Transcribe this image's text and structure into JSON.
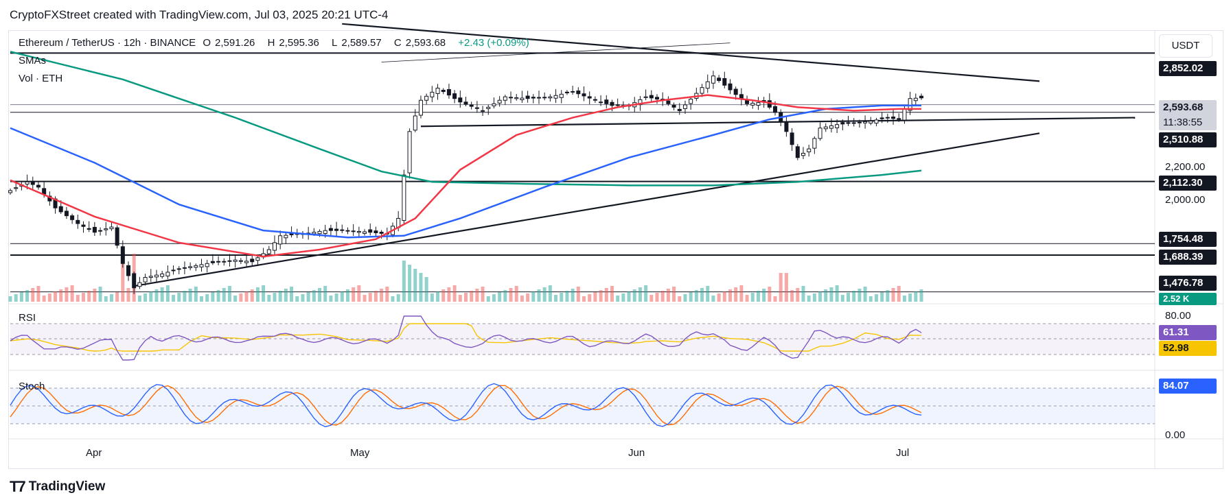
{
  "caption": "CryptoFXStreet created with TradingView.com, Jul 03, 2025 20:21 UTC-4",
  "legend": {
    "symbol": "Ethereum / TetherUS · 12h · BINANCE",
    "open_label": "O",
    "open": "2,591.26",
    "high_label": "H",
    "high": "2,595.36",
    "low_label": "L",
    "low": "2,589.57",
    "close_label": "C",
    "close": "2,593.68",
    "change": "+2.43 (+0.09%)",
    "smas": "SMAs",
    "vol": "Vol · ETH"
  },
  "currency": "USDT",
  "brand": "TradingView",
  "colors": {
    "up": "#26a69a",
    "down": "#ef5350",
    "sma_red": "#f23645",
    "sma_blue": "#2962ff",
    "sma_green": "#089981",
    "rsi": "#7e57c2",
    "rsi_ma": "#f7c500",
    "stoch_k": "#2962ff",
    "stoch_d": "#ff6d00"
  },
  "chart_data": {
    "type": "candlestick",
    "x_labels": [
      "Apr",
      "May",
      "Jun",
      "Jul"
    ],
    "price_axis_ticks": [
      "2,200.00",
      "2,000.00"
    ],
    "levels": [
      {
        "value": 2852.02,
        "label": "2,852.02"
      },
      {
        "value": 2510.88,
        "label": "2,510.88"
      },
      {
        "value": 2112.3,
        "label": "2,112.30"
      },
      {
        "value": 1754.48,
        "label": "1,754.48"
      },
      {
        "value": 1688.39,
        "label": "1,688.39"
      },
      {
        "value": 1476.78,
        "label": "1,476.78"
      }
    ],
    "last_price": {
      "label": "2,593.68",
      "countdown": "11:38:55"
    },
    "volume_label": "2.52 K",
    "close_path": [
      [
        0,
        2060
      ],
      [
        3,
        2110
      ],
      [
        5,
        2080
      ],
      [
        8,
        1960
      ],
      [
        12,
        1870
      ],
      [
        15,
        1820
      ],
      [
        18,
        1850
      ],
      [
        20,
        1640
      ],
      [
        22,
        1500
      ],
      [
        24,
        1560
      ],
      [
        27,
        1580
      ],
      [
        30,
        1610
      ],
      [
        35,
        1640
      ],
      [
        40,
        1660
      ],
      [
        43,
        1650
      ],
      [
        46,
        1720
      ],
      [
        48,
        1800
      ],
      [
        52,
        1810
      ],
      [
        56,
        1830
      ],
      [
        60,
        1830
      ],
      [
        64,
        1820
      ],
      [
        67,
        1810
      ],
      [
        69,
        1900
      ],
      [
        71,
        2400
      ],
      [
        73,
        2580
      ],
      [
        76,
        2650
      ],
      [
        80,
        2570
      ],
      [
        84,
        2520
      ],
      [
        88,
        2600
      ],
      [
        92,
        2590
      ],
      [
        96,
        2600
      ],
      [
        100,
        2630
      ],
      [
        104,
        2580
      ],
      [
        107,
        2550
      ],
      [
        110,
        2550
      ],
      [
        113,
        2600
      ],
      [
        116,
        2580
      ],
      [
        119,
        2520
      ],
      [
        122,
        2620
      ],
      [
        125,
        2720
      ],
      [
        128,
        2640
      ],
      [
        131,
        2560
      ],
      [
        134,
        2570
      ],
      [
        136,
        2510
      ],
      [
        138,
        2400
      ],
      [
        140,
        2250
      ],
      [
        142,
        2300
      ],
      [
        144,
        2420
      ],
      [
        147,
        2440
      ],
      [
        150,
        2450
      ],
      [
        153,
        2460
      ],
      [
        156,
        2480
      ],
      [
        158,
        2470
      ],
      [
        160,
        2590
      ],
      [
        162,
        2593.68
      ]
    ],
    "sma_red": [
      [
        0,
        2120
      ],
      [
        15,
        1910
      ],
      [
        30,
        1760
      ],
      [
        45,
        1680
      ],
      [
        55,
        1720
      ],
      [
        65,
        1780
      ],
      [
        72,
        1900
      ],
      [
        80,
        2180
      ],
      [
        90,
        2380
      ],
      [
        100,
        2480
      ],
      [
        108,
        2540
      ],
      [
        116,
        2580
      ],
      [
        124,
        2610
      ],
      [
        132,
        2580
      ],
      [
        140,
        2540
      ],
      [
        150,
        2520
      ],
      [
        158,
        2530
      ],
      [
        162,
        2530
      ]
    ],
    "sma_blue": [
      [
        0,
        2420
      ],
      [
        15,
        2220
      ],
      [
        30,
        1980
      ],
      [
        45,
        1830
      ],
      [
        60,
        1790
      ],
      [
        70,
        1800
      ],
      [
        80,
        1900
      ],
      [
        95,
        2080
      ],
      [
        110,
        2250
      ],
      [
        125,
        2380
      ],
      [
        135,
        2470
      ],
      [
        145,
        2530
      ],
      [
        155,
        2550
      ],
      [
        162,
        2550
      ]
    ],
    "sma_green": [
      [
        0,
        2860
      ],
      [
        20,
        2700
      ],
      [
        40,
        2480
      ],
      [
        55,
        2300
      ],
      [
        66,
        2170
      ],
      [
        75,
        2110
      ],
      [
        90,
        2100
      ],
      [
        110,
        2090
      ],
      [
        125,
        2090
      ],
      [
        140,
        2110
      ],
      [
        155,
        2150
      ],
      [
        162,
        2175
      ]
    ],
    "rsi_levels": [
      "80.00",
      "61.31",
      "52.98"
    ],
    "stoch_levels": [
      "84.07",
      "0.00"
    ]
  }
}
